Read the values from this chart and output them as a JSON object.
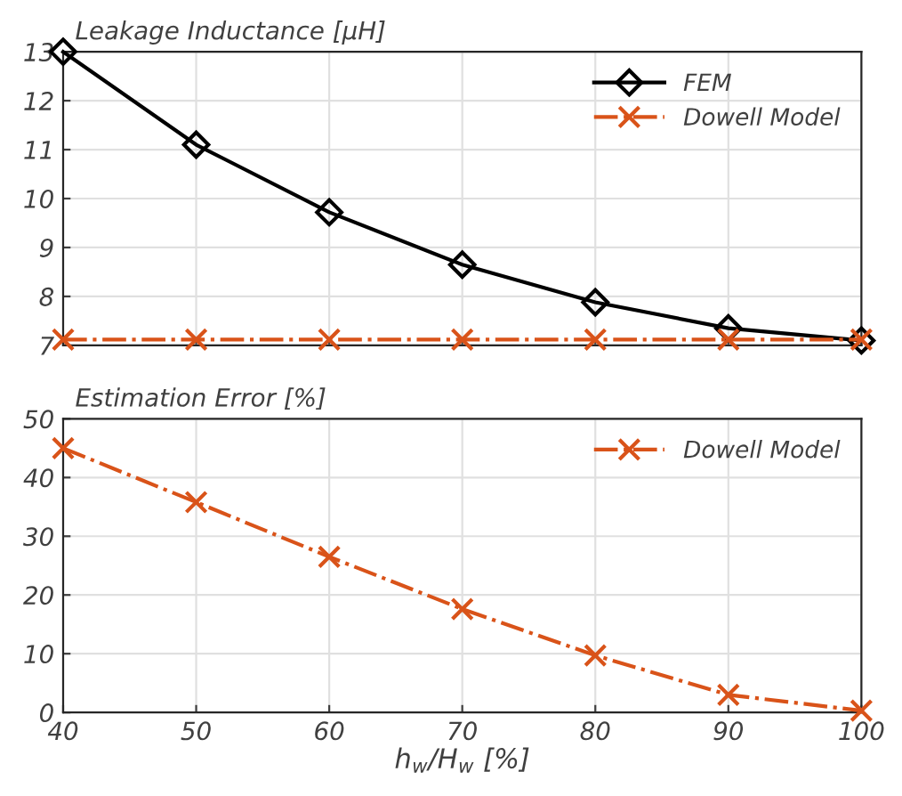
{
  "chart_data": [
    {
      "type": "line",
      "title": "Leakage Inductance [μH]",
      "x": [
        40,
        50,
        60,
        70,
        80,
        90,
        100
      ],
      "series": [
        {
          "name": "FEM",
          "color": "#000000",
          "marker": "diamond",
          "line_style": "solid",
          "values": [
            13.0,
            11.1,
            9.72,
            8.65,
            7.88,
            7.35,
            7.1
          ]
        },
        {
          "name": "Dowell Model",
          "color": "#d95319",
          "marker": "cross",
          "line_style": "dashdot",
          "values": [
            7.12,
            7.12,
            7.12,
            7.12,
            7.12,
            7.12,
            7.12
          ]
        }
      ],
      "xlim": [
        40,
        100
      ],
      "xticks": [
        40,
        50,
        60,
        70,
        80,
        90,
        100
      ],
      "ylim": [
        7,
        13
      ],
      "yticks": [
        7,
        8,
        9,
        10,
        11,
        12,
        13
      ],
      "tick_labels": "y",
      "grid": true,
      "legend": "top right"
    },
    {
      "type": "line",
      "title": "Estimation Error [%]",
      "xlabel": "h$_{w}$/H$_{w}$ [%]",
      "x": [
        40,
        50,
        60,
        70,
        80,
        90,
        100
      ],
      "series": [
        {
          "name": "Dowell Model",
          "color": "#d95319",
          "marker": "cross",
          "line_style": "dashdot",
          "values": [
            45.0,
            35.8,
            26.5,
            17.6,
            9.7,
            3.0,
            0.3
          ]
        }
      ],
      "xlim": [
        40,
        100
      ],
      "xticks": [
        40,
        50,
        60,
        70,
        80,
        90,
        100
      ],
      "ylim": [
        0,
        50
      ],
      "yticks": [
        0,
        10,
        20,
        30,
        40,
        50
      ],
      "grid": true,
      "legend": "top right"
    }
  ]
}
